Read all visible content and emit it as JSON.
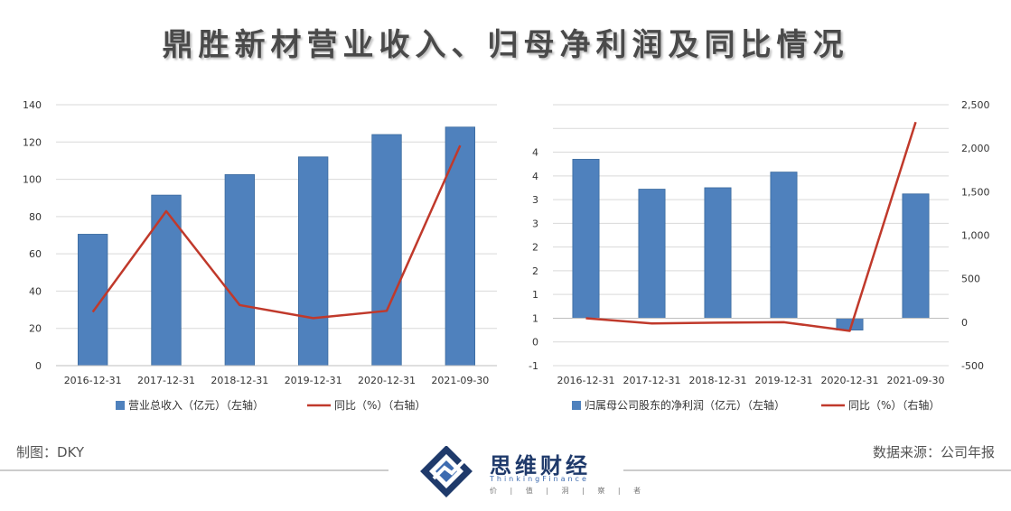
{
  "title": "鼎胜新材营业收入、归母净利润及同比情况",
  "footer": {
    "maker": "制图：DKY",
    "source": "数据来源：公司年报"
  },
  "brand": {
    "name": "思维财经",
    "sub": "ThinkingFinance",
    "tag": "价 | 值 | 洞 | 察 | 者"
  },
  "colors": {
    "bar": "#4f81bd",
    "line": "#c0392b",
    "grid": "#d9d9d9",
    "axis": "#bfbfbf"
  },
  "chart_data": [
    {
      "type": "bar+line",
      "categories": [
        "2016-12-31",
        "2017-12-31",
        "2018-12-31",
        "2019-12-31",
        "2020-12-31",
        "2021-09-30"
      ],
      "series": [
        {
          "name": "营业总收入（亿元）（左轴）",
          "kind": "bar",
          "axis": "left",
          "values": [
            70.5,
            91.5,
            102.5,
            112,
            124,
            128
          ]
        },
        {
          "name": "同比（%）（右轴）",
          "kind": "line",
          "axis": "right",
          "values": [
            10.3,
            29.6,
            11.6,
            9.1,
            10.5,
            42.2
          ]
        }
      ],
      "left_axis": {
        "min": 0,
        "max": 140,
        "step": 20,
        "ticks": [
          "0",
          "20",
          "40",
          "60",
          "80",
          "100",
          "120",
          "140"
        ]
      },
      "right_axis": {
        "min": 0,
        "max": 50,
        "step": 5,
        "ticks": [
          "0",
          "5",
          "10",
          "15",
          "20",
          "25",
          "30",
          "35",
          "40",
          "45",
          "50"
        ]
      },
      "grid": true,
      "legend": "bottom"
    },
    {
      "type": "bar+line",
      "categories": [
        "2016-12-31",
        "2017-12-31",
        "2018-12-31",
        "2019-12-31",
        "2020-12-31",
        "2021-09-30"
      ],
      "series": [
        {
          "name": "归属母公司股东的净利润（亿元）（左轴）",
          "kind": "bar",
          "axis": "left",
          "values": [
            3.35,
            2.72,
            2.75,
            3.08,
            -0.25,
            2.62
          ]
        },
        {
          "name": "同比（%）（右轴）",
          "kind": "line",
          "axis": "right",
          "values": [
            45,
            -15,
            -5,
            0,
            -100,
            2300
          ]
        }
      ],
      "left_axis": {
        "min": -1,
        "max": 4.5,
        "step": 0.5,
        "ticks": [
          "-1",
          "0",
          "1",
          "1",
          "2",
          "2",
          "3",
          "3",
          "4",
          "4",
          ""
        ]
      },
      "right_axis": {
        "min": -500,
        "max": 2500,
        "step": 500,
        "ticks": [
          "-500",
          "0",
          "500",
          "1,000",
          "1,500",
          "2,000",
          "2,500"
        ]
      },
      "grid": true,
      "legend": "bottom"
    }
  ]
}
